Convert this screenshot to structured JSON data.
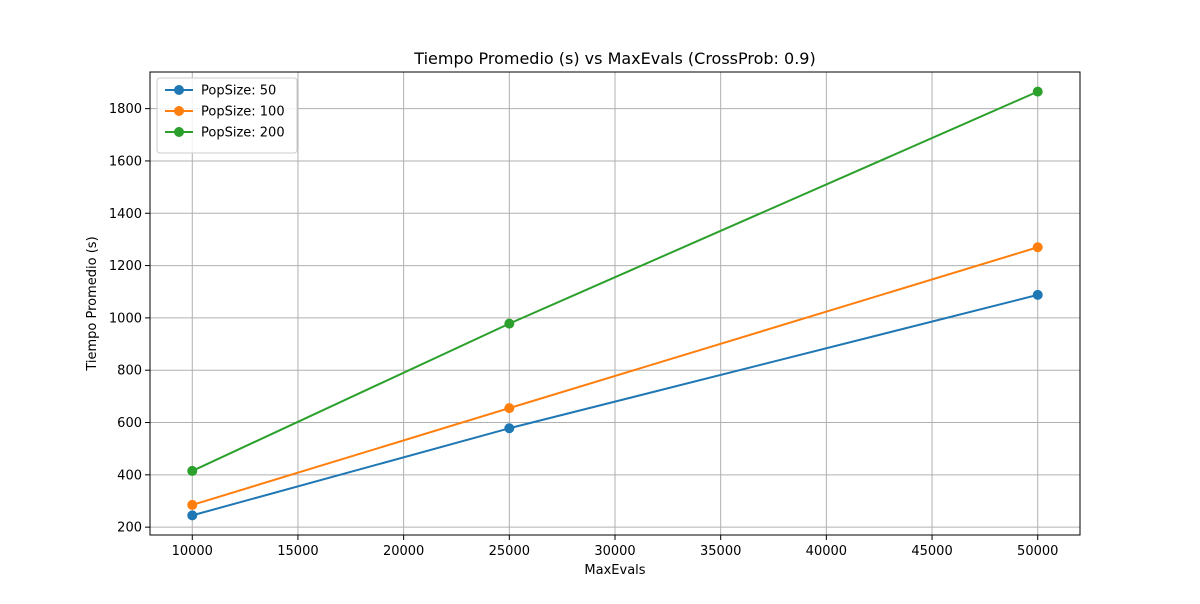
{
  "chart_data": {
    "type": "line",
    "title": "Tiempo Promedio (s) vs MaxEvals (CrossProb: 0.9)",
    "xlabel": "MaxEvals",
    "ylabel": "Tiempo Promedio (s)",
    "x": [
      10000,
      25000,
      50000
    ],
    "xlim": [
      8000,
      52000
    ],
    "ylim": [
      170,
      1940
    ],
    "xticks": [
      10000,
      15000,
      20000,
      25000,
      30000,
      35000,
      40000,
      45000,
      50000
    ],
    "yticks": [
      200,
      400,
      600,
      800,
      1000,
      1200,
      1400,
      1600,
      1800
    ],
    "grid": true,
    "legend_position": "top-left",
    "series": [
      {
        "name": "PopSize: 50",
        "color": "#1f77b4",
        "values": [
          245,
          578,
          1088
        ]
      },
      {
        "name": "PopSize: 100",
        "color": "#ff7f0e",
        "values": [
          285,
          655,
          1270
        ]
      },
      {
        "name": "PopSize: 200",
        "color": "#2ca02c",
        "values": [
          415,
          978,
          1865
        ]
      }
    ]
  }
}
